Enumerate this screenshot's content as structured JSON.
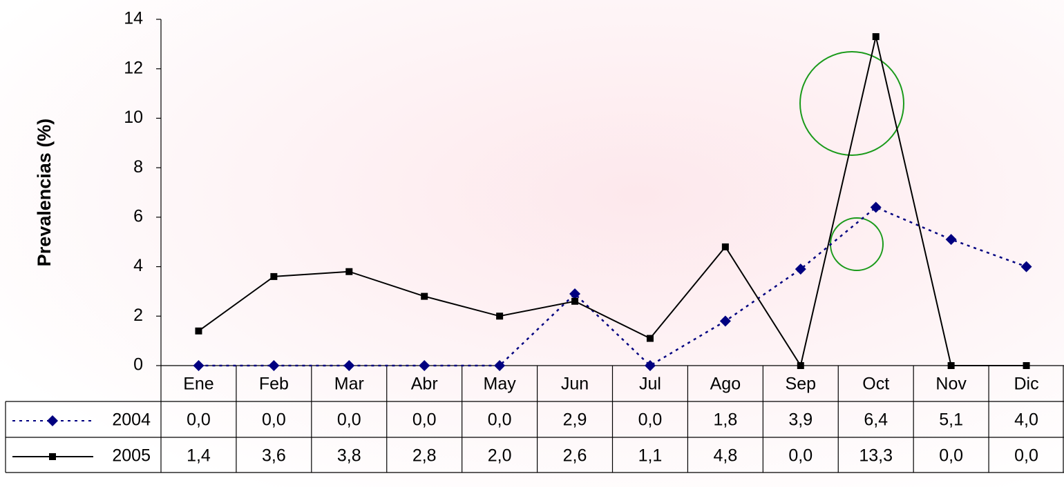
{
  "chart_data": {
    "type": "line",
    "y_label": "Prevalencias (%)",
    "categories": [
      "Ene",
      "Feb",
      "Mar",
      "Abr",
      "May",
      "Jun",
      "Jul",
      "Ago",
      "Sep",
      "Oct",
      "Nov",
      "Dic"
    ],
    "series": [
      {
        "name": "2004",
        "color": "#000080",
        "line_style": "dotted",
        "marker": "diamond",
        "values": [
          0.0,
          0.0,
          0.0,
          0.0,
          0.0,
          2.9,
          0.0,
          1.8,
          3.9,
          6.4,
          5.1,
          4.0
        ],
        "value_labels": [
          "0,0",
          "0,0",
          "0,0",
          "0,0",
          "0,0",
          "2,9",
          "0,0",
          "1,8",
          "3,9",
          "6,4",
          "5,1",
          "4,0"
        ]
      },
      {
        "name": "2005",
        "color": "#000000",
        "line_style": "solid",
        "marker": "square",
        "values": [
          1.4,
          3.6,
          3.8,
          2.8,
          2.0,
          2.6,
          1.1,
          4.8,
          0.0,
          13.3,
          0.0,
          0.0
        ],
        "value_labels": [
          "1,4",
          "3,6",
          "3,8",
          "2,8",
          "2,0",
          "2,6",
          "1,1",
          "4,8",
          "0,0",
          "13,3",
          "0,0",
          "0,0"
        ]
      }
    ],
    "ylim": [
      0,
      14
    ],
    "yticks": [
      0,
      2,
      4,
      6,
      8,
      10,
      12,
      14
    ]
  }
}
